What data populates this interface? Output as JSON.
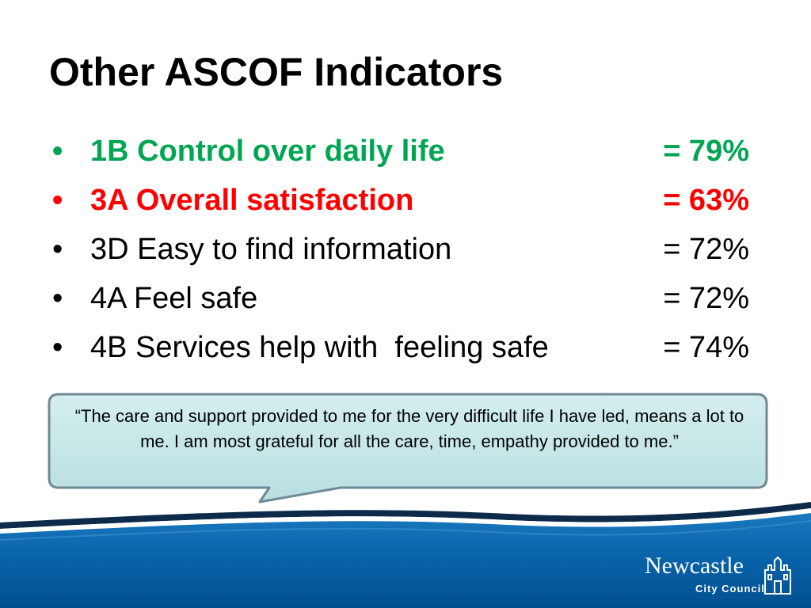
{
  "slide": {
    "title": "Other ASCOF Indicators"
  },
  "indicators": [
    {
      "bullet": "•",
      "label": "1B Control over daily life",
      "value": "= 79%",
      "status": "green"
    },
    {
      "bullet": "•",
      "label": "3A Overall satisfaction",
      "value": "= 63%",
      "status": "red"
    },
    {
      "bullet": "•",
      "label": "3D Easy to find information",
      "value": "= 72%",
      "status": "black"
    },
    {
      "bullet": "•",
      "label": "4A Feel safe",
      "value": "= 72%",
      "status": "black"
    },
    {
      "bullet": "•",
      "label": "4B Services help with  feeling safe",
      "value": "= 74%",
      "status": "black"
    }
  ],
  "quote": {
    "text": "“The care and support provided to me for the very difficult life I have led, means a lot to me. I am most grateful for all the care, time, empathy provided to me.”"
  },
  "logo": {
    "name": "Newcastle",
    "subtitle": "City Council",
    "icon": "castle-icon"
  },
  "colors": {
    "green": "#00a651",
    "red": "#ff0000",
    "callout_fill": "#c6e7e7",
    "callout_border": "#6f8a96",
    "footer_blue": "#005b9f"
  }
}
